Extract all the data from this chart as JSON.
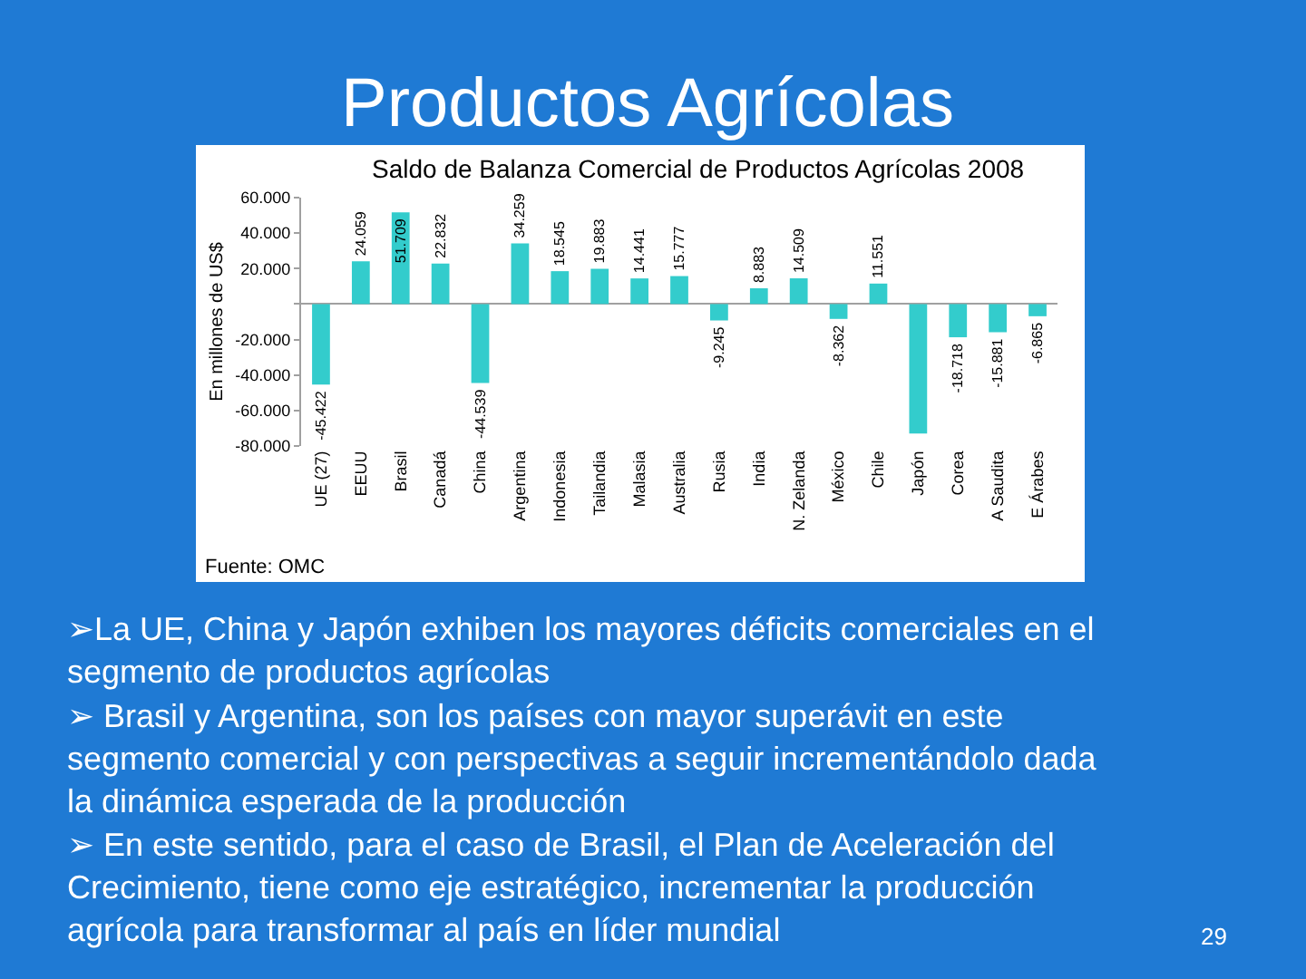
{
  "chart_data": {
    "type": "bar",
    "title": "Productos Agrícolas",
    "subtitle": "Saldo de Balanza Comercial de Productos Agrícolas 2008",
    "ylabel": "En millones de US$",
    "categories": [
      "UE (27)",
      "EEUU",
      "Brasil",
      "Canadá",
      "China",
      "Argentina",
      "Indonesia",
      "Tailandia",
      "Malasia",
      "Australia",
      "Rusia",
      "India",
      "N. Zelanda",
      "México",
      "Chile",
      "Japón",
      "Corea",
      "A Saudita",
      "E Árabes"
    ],
    "values": [
      -45422,
      24059,
      51709,
      22832,
      -44539,
      34259,
      18545,
      19883,
      14441,
      15777,
      -9245,
      8883,
      14509,
      -8362,
      11551,
      -73000,
      -18718,
      -15881,
      -6865
    ],
    "value_labels": [
      "-45.422",
      "24.059",
      "51.709",
      "22.832",
      "-44.539",
      "34.259",
      "18.545",
      "19.883",
      "14.441",
      "15.777",
      "-9.245",
      "8.883",
      "14.509",
      "-8.362",
      "11.551",
      null,
      "-18.718",
      "-15.881",
      "-6.865"
    ],
    "color": "#33cccc",
    "ylim": [
      -80000,
      60000
    ],
    "yticks": [
      {
        "value": 60000,
        "label": "60.000"
      },
      {
        "value": 40000,
        "label": "40.000"
      },
      {
        "value": 20000,
        "label": "20.000"
      },
      {
        "value": 0,
        "label": null
      },
      {
        "value": -20000,
        "label": "-20.000"
      },
      {
        "value": -40000,
        "label": "-40.000"
      },
      {
        "value": -60000,
        "label": "-60.000"
      },
      {
        "value": -80000,
        "label": "-80.000"
      }
    ],
    "annotations": [
      "Fuente: OMC",
      "➢La UE, China y Japón exhiben los mayores déficits comerciales en el segmento de productos agrícolas",
      "➢ Brasil y Argentina, son los países con mayor superávit en este segmento comercial y con perspectivas a seguir incrementándolo dada la dinámica esperada de la producción",
      "➢ En este sentido, para el caso de Brasil, el Plan de Aceleración del Crecimiento, tiene como eje estratégico, incrementar la producción agrícola para transformar al país en líder mundial",
      "29"
    ]
  }
}
